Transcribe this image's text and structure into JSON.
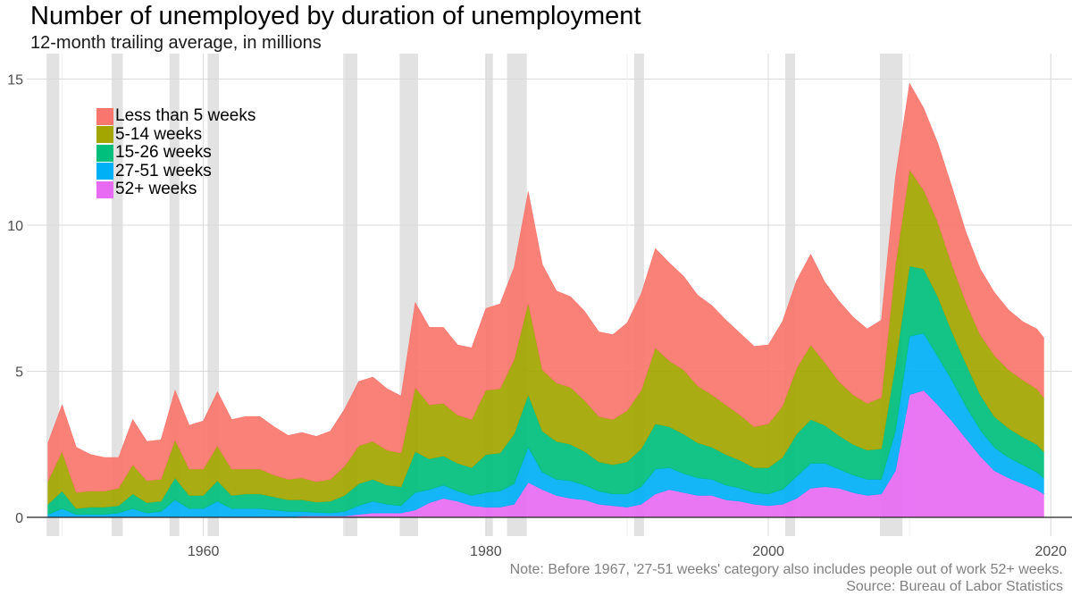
{
  "title": "Number of unemployed by duration of unemployment",
  "subtitle": "12-month trailing average, in millions",
  "note": "Note: Before 1967, '27-51 weeks' category also includes people out of work 52+ weeks.",
  "source": "Source: Bureau of Labor Statistics",
  "colors": {
    "Less than 5 weeks": "#F8766D",
    "5-14 weeks": "#A3A500",
    "15-26 weeks": "#00BF7D",
    "27-51 weeks": "#00B0F6",
    "52+ weeks": "#E76BF3",
    "recession": "#e2e2e2",
    "grid": "#d9d9d9"
  },
  "chart_data": {
    "type": "area",
    "stacked": true,
    "xlim": [
      1947.5,
      2021.5
    ],
    "ylim": [
      0,
      15.6
    ],
    "x_ticks": [
      1960,
      1980,
      2000,
      2020
    ],
    "x_tick_labels": [
      "1960",
      "1980",
      "2000",
      "2020"
    ],
    "y_ticks": [
      0,
      5,
      10,
      15
    ],
    "y_tick_labels": [
      "0",
      "5",
      "10",
      "15"
    ],
    "legend_position": "top-left",
    "recessions": [
      [
        1948.9,
        1949.8
      ],
      [
        1953.5,
        1954.3
      ],
      [
        1957.6,
        1958.3
      ],
      [
        1960.3,
        1961.1
      ],
      [
        1969.9,
        1970.9
      ],
      [
        1973.9,
        1975.2
      ],
      [
        1980.0,
        1980.5
      ],
      [
        1981.5,
        1982.9
      ],
      [
        1990.5,
        1991.2
      ],
      [
        2001.2,
        2001.9
      ],
      [
        2007.9,
        2009.5
      ]
    ],
    "x": [
      1949.0,
      1950.0,
      1951.0,
      1952.0,
      1953.0,
      1954.0,
      1955.0,
      1956.0,
      1957.0,
      1958.0,
      1959.0,
      1960.0,
      1961.0,
      1962.0,
      1963.0,
      1964.0,
      1965.0,
      1966.0,
      1967.0,
      1968.0,
      1969.0,
      1970.0,
      1971.0,
      1972.0,
      1973.0,
      1974.0,
      1975.0,
      1976.0,
      1977.0,
      1978.0,
      1979.0,
      1980.0,
      1981.0,
      1982.0,
      1983.0,
      1984.0,
      1985.0,
      1986.0,
      1987.0,
      1988.0,
      1989.0,
      1990.0,
      1991.0,
      1992.0,
      1993.0,
      1994.0,
      1995.0,
      1996.0,
      1997.0,
      1998.0,
      1999.0,
      2000.0,
      2001.0,
      2002.0,
      2003.0,
      2004.0,
      2005.0,
      2006.0,
      2007.0,
      2008.0,
      2009.0,
      2010.0,
      2011.0,
      2012.0,
      2013.0,
      2014.0,
      2015.0,
      2016.0,
      2017.0,
      2018.0,
      2019.0,
      2019.5
    ],
    "series": [
      {
        "name": "Less than 5 weeks",
        "values": [
          1.3,
          1.6,
          1.55,
          1.25,
          1.15,
          1.05,
          1.55,
          1.35,
          1.35,
          1.7,
          1.5,
          1.65,
          1.85,
          1.7,
          1.8,
          1.8,
          1.65,
          1.5,
          1.55,
          1.55,
          1.65,
          1.95,
          2.2,
          2.2,
          2.1,
          1.95,
          2.9,
          2.65,
          2.6,
          2.4,
          2.45,
          2.8,
          2.9,
          3.15,
          3.8,
          3.6,
          3.15,
          3.1,
          3.05,
          2.9,
          2.9,
          3.0,
          3.3,
          3.4,
          3.35,
          3.2,
          3.1,
          3.05,
          2.9,
          2.8,
          2.75,
          2.7,
          2.9,
          3.0,
          3.1,
          2.75,
          2.75,
          2.65,
          2.55,
          2.65,
          3.0,
          2.95,
          2.8,
          2.7,
          2.65,
          2.4,
          2.25,
          2.15,
          2.05,
          2.0,
          2.05,
          2.05
        ]
      },
      {
        "name": "5-14 weeks",
        "values": [
          0.8,
          1.35,
          0.55,
          0.55,
          0.55,
          0.6,
          1.0,
          0.75,
          0.75,
          1.3,
          0.9,
          0.9,
          1.2,
          0.9,
          0.85,
          0.85,
          0.75,
          0.7,
          0.75,
          0.7,
          0.75,
          1.0,
          1.3,
          1.3,
          1.2,
          1.15,
          2.2,
          1.85,
          1.8,
          1.65,
          1.65,
          2.2,
          2.2,
          2.55,
          3.15,
          2.1,
          2.0,
          1.95,
          1.75,
          1.55,
          1.55,
          1.75,
          2.0,
          2.6,
          2.25,
          2.2,
          1.95,
          1.8,
          1.7,
          1.55,
          1.4,
          1.5,
          1.75,
          2.25,
          2.55,
          2.15,
          1.85,
          1.7,
          1.6,
          1.75,
          3.4,
          3.3,
          2.7,
          2.55,
          2.3,
          2.1,
          2.05,
          2.1,
          2.0,
          1.95,
          1.9,
          1.85
        ]
      },
      {
        "name": "15-26 weeks",
        "values": [
          0.35,
          0.6,
          0.2,
          0.25,
          0.25,
          0.25,
          0.5,
          0.35,
          0.35,
          0.75,
          0.45,
          0.45,
          0.7,
          0.45,
          0.5,
          0.5,
          0.45,
          0.4,
          0.4,
          0.35,
          0.4,
          0.55,
          0.75,
          0.75,
          0.65,
          0.65,
          1.4,
          1.05,
          1.0,
          0.95,
          0.95,
          1.3,
          1.3,
          1.7,
          1.8,
          1.4,
          1.3,
          1.25,
          1.15,
          1.0,
          1.0,
          1.1,
          1.3,
          1.55,
          1.4,
          1.35,
          1.2,
          1.1,
          1.05,
          0.95,
          0.85,
          0.9,
          1.1,
          1.45,
          1.5,
          1.3,
          1.15,
          1.05,
          1.0,
          1.05,
          2.3,
          2.4,
          2.2,
          2.05,
          1.65,
          1.45,
          1.2,
          1.05,
          1.0,
          0.95,
          0.95,
          0.9
        ]
      },
      {
        "name": "27-51 weeks",
        "values": [
          0.1,
          0.3,
          0.1,
          0.1,
          0.1,
          0.15,
          0.3,
          0.15,
          0.2,
          0.6,
          0.3,
          0.3,
          0.55,
          0.3,
          0.3,
          0.3,
          0.25,
          0.2,
          0.15,
          0.12,
          0.1,
          0.15,
          0.3,
          0.4,
          0.3,
          0.25,
          0.6,
          0.45,
          0.45,
          0.35,
          0.35,
          0.5,
          0.55,
          0.7,
          1.2,
          0.6,
          0.55,
          0.6,
          0.5,
          0.45,
          0.4,
          0.45,
          0.6,
          0.85,
          0.75,
          0.65,
          0.6,
          0.55,
          0.5,
          0.45,
          0.4,
          0.4,
          0.5,
          0.75,
          0.85,
          0.8,
          0.65,
          0.6,
          0.55,
          0.5,
          1.35,
          2.0,
          1.95,
          1.65,
          1.4,
          1.1,
          0.9,
          0.8,
          0.7,
          0.65,
          0.6,
          0.55
        ]
      },
      {
        "name": "52+ weeks",
        "values": [
          0,
          0,
          0,
          0,
          0,
          0,
          0,
          0,
          0,
          0,
          0,
          0,
          0,
          0,
          0,
          0,
          0,
          0,
          0.05,
          0.05,
          0.05,
          0.05,
          0.1,
          0.15,
          0.15,
          0.15,
          0.25,
          0.5,
          0.65,
          0.55,
          0.4,
          0.35,
          0.35,
          0.45,
          1.2,
          0.95,
          0.75,
          0.65,
          0.6,
          0.45,
          0.4,
          0.35,
          0.45,
          0.8,
          0.95,
          0.85,
          0.75,
          0.75,
          0.6,
          0.55,
          0.45,
          0.4,
          0.45,
          0.65,
          1.0,
          1.05,
          1.0,
          0.85,
          0.75,
          0.8,
          1.6,
          4.2,
          4.35,
          3.85,
          3.3,
          2.7,
          2.1,
          1.6,
          1.35,
          1.15,
          0.95,
          0.8
        ]
      }
    ]
  }
}
